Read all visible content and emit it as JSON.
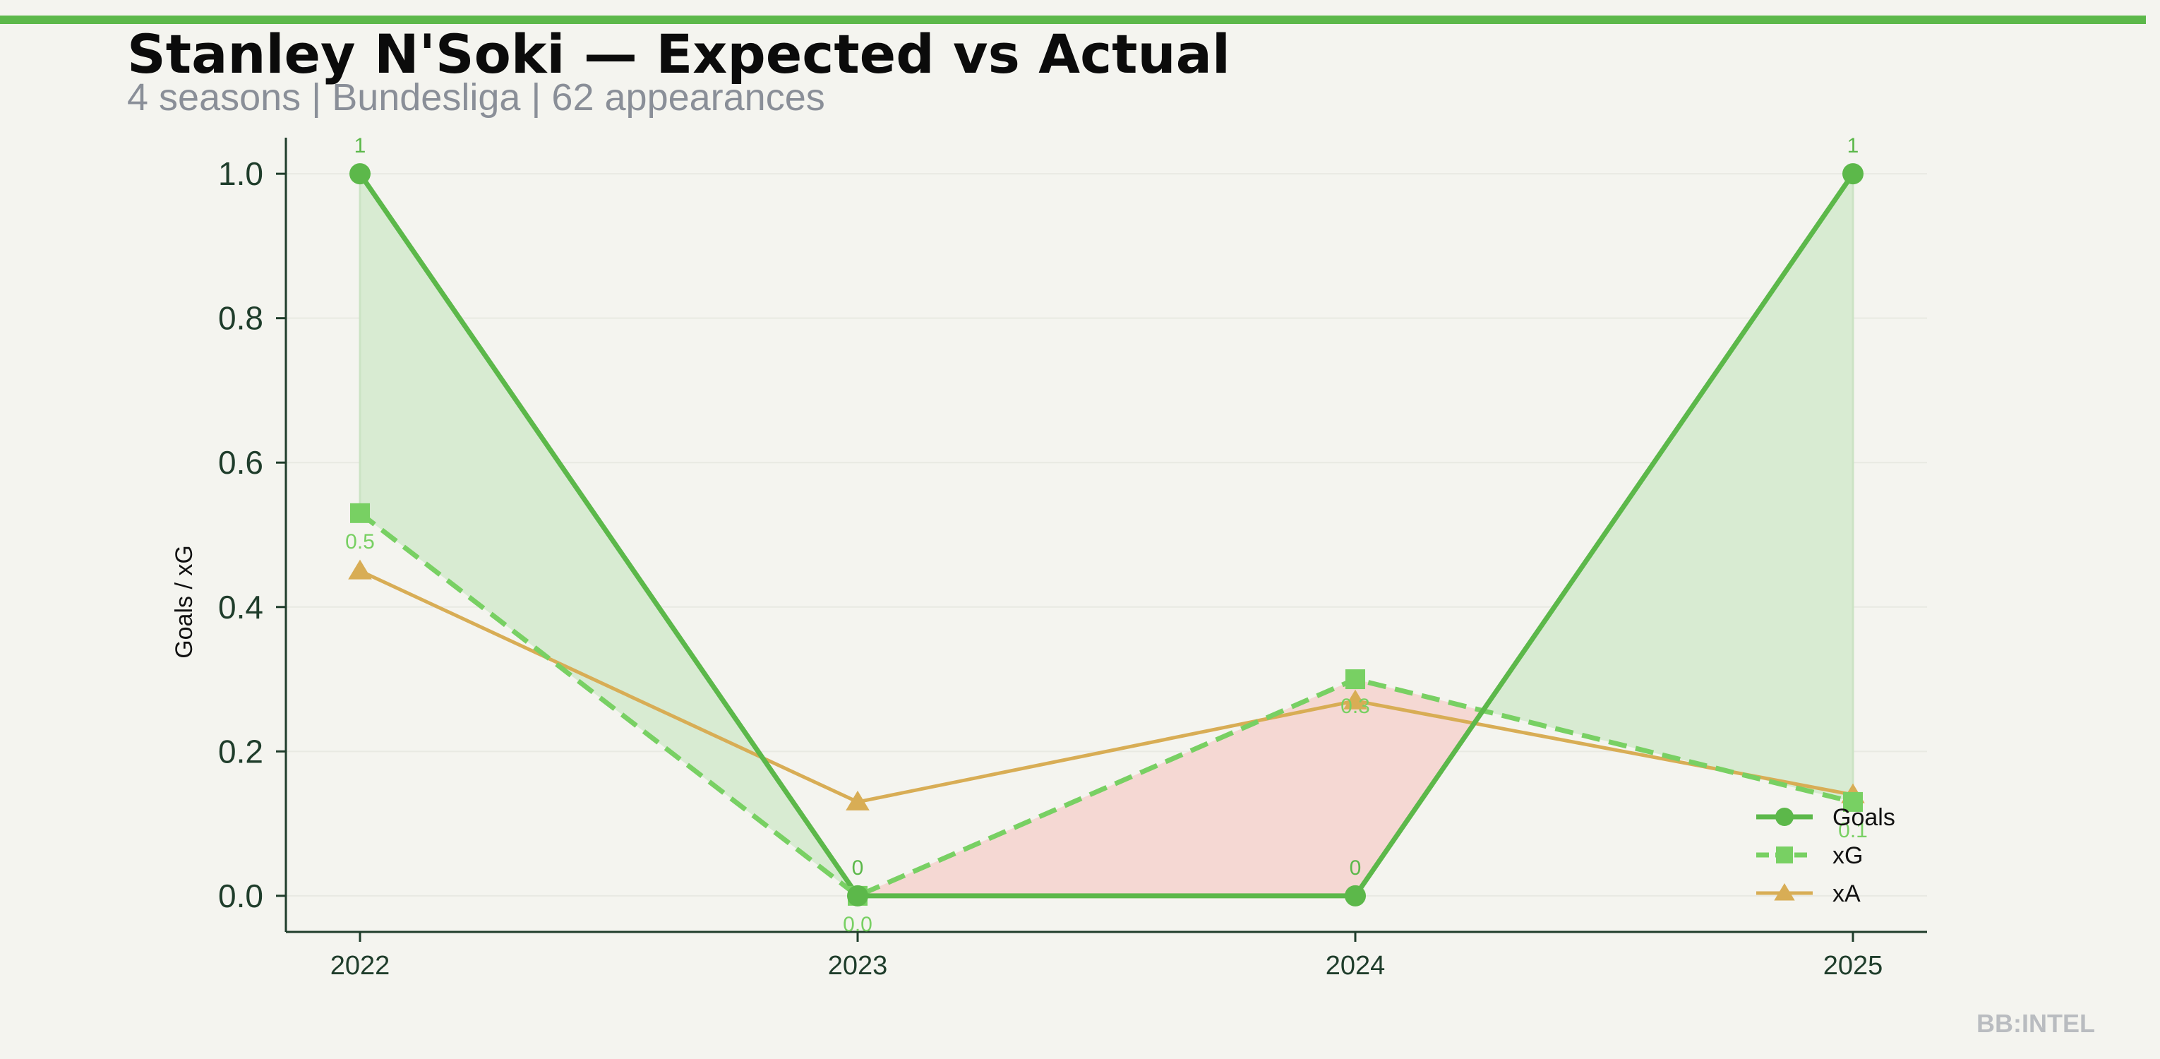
{
  "header": {
    "title": "Stanley N'Soki — Expected vs Actual",
    "subtitle": "4 seasons | Bundesliga | 62 appearances"
  },
  "watermark": "BB:INTEL",
  "colors": {
    "background": "#f4f4ef",
    "accent_bar": "#5cb84a",
    "goals": "#5cb84a",
    "xg": "#78d063",
    "xa": "#d8ad55",
    "overperform_fill": "#d8ebd2",
    "underperform_fill": "#f5d8d3",
    "axis": "#1f3d2b"
  },
  "chart_data": {
    "type": "line",
    "title": "Stanley N'Soki — Expected vs Actual",
    "subtitle": "4 seasons | Bundesliga | 62 appearances",
    "xlabel": "",
    "ylabel": "Goals / xG",
    "categories": [
      "2022",
      "2023",
      "2024",
      "2025"
    ],
    "ylim": [
      -0.05,
      1.05
    ],
    "yticks": [
      "0.0",
      "0.2",
      "0.4",
      "0.6",
      "0.8",
      "1.0"
    ],
    "grid": true,
    "legend_position": "bottom-right",
    "series": [
      {
        "name": "Goals",
        "values": [
          1,
          0,
          0,
          1
        ],
        "labels": [
          "1",
          "0",
          "0",
          "1"
        ],
        "marker": "circle",
        "style": "solid"
      },
      {
        "name": "xG",
        "values": [
          0.53,
          0.0,
          0.3,
          0.13
        ],
        "labels": [
          "0.5",
          "0.0",
          "0.3",
          "0.1"
        ],
        "marker": "square",
        "style": "dashed"
      },
      {
        "name": "xA",
        "values": [
          0.45,
          0.13,
          0.27,
          0.14
        ],
        "marker": "triangle",
        "style": "solid"
      }
    ],
    "fill_between": [
      "Goals",
      "xG"
    ]
  }
}
